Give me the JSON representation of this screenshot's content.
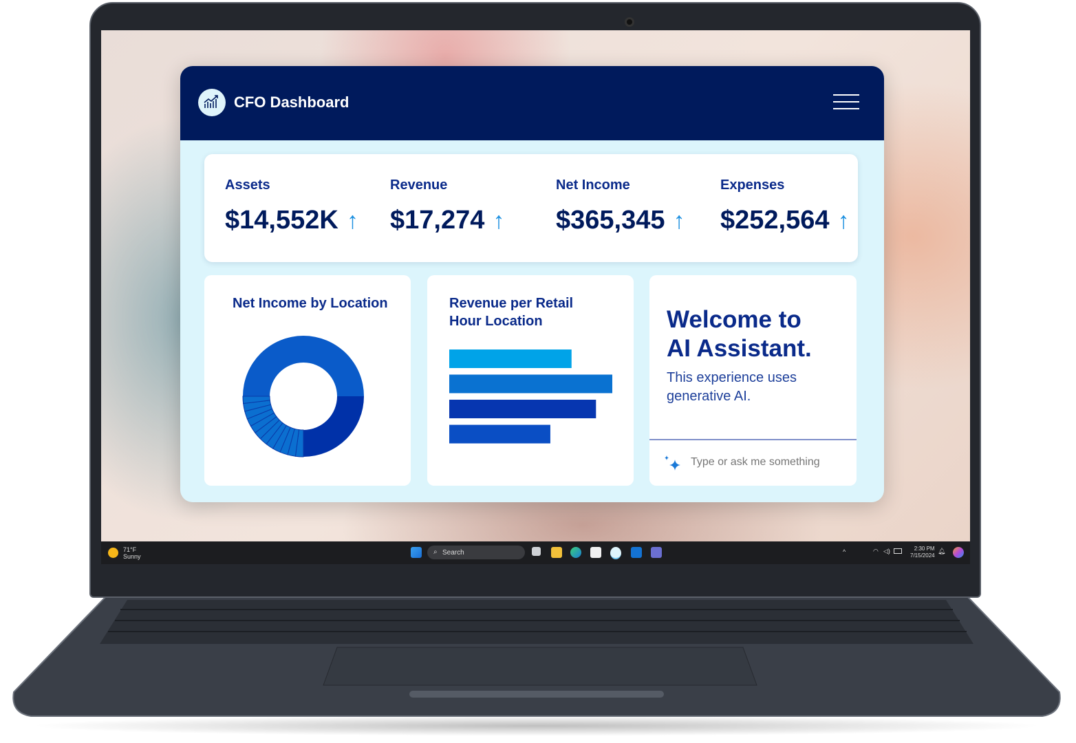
{
  "app": {
    "title": "CFO Dashboard",
    "logo_icon": "chart-growth-icon",
    "menu_icon": "hamburger-menu-icon"
  },
  "kpis": [
    {
      "label": "Assets",
      "value": "$14,552K",
      "trend": "up"
    },
    {
      "label": "Revenue",
      "value": "$17,274",
      "trend": "up"
    },
    {
      "label": "Net Income",
      "value": "$365,345",
      "trend": "up"
    },
    {
      "label": "Expenses",
      "value": "$252,564",
      "trend": "up"
    }
  ],
  "arrow_glyph": "↑",
  "chart_data": [
    {
      "type": "pie",
      "title": "Net Income by Location",
      "values": [
        50,
        25,
        2.1,
        2.1,
        2.1,
        2.1,
        2.1,
        2.1,
        2.1,
        2.1,
        2.1,
        2.1,
        2.1,
        1.9
      ],
      "colors": [
        "#0a5bc9",
        "#0031a8",
        "#0b6fd0"
      ],
      "donut": true
    },
    {
      "type": "bar",
      "title": "Revenue per Retail Hour Location",
      "orientation": "horizontal",
      "values": [
        75,
        100,
        90,
        62
      ],
      "colors": [
        "#00a3e8",
        "#0a72d1",
        "#0636b0",
        "#0a4ec4"
      ]
    }
  ],
  "assistant": {
    "heading_line1": "Welcome to",
    "heading_line2": "AI Assistant.",
    "body": "This experience uses generative AI.",
    "placeholder": "Type or ask me something",
    "icon": "sparkle-icon"
  },
  "taskbar": {
    "weather_temp": "71°F",
    "weather_cond": "Sunny",
    "search_label": "Search",
    "time": "2:30 PM",
    "date": "7/15/2024",
    "apps": [
      "start",
      "search",
      "task-view",
      "file-explorer",
      "edge",
      "store",
      "cfo-dashboard",
      "outlook",
      "teams"
    ]
  },
  "colors": {
    "header": "#001a5c",
    "panel": "#dcf5fc",
    "accent": "#1b8fe0",
    "text": "#0a2a8a"
  }
}
